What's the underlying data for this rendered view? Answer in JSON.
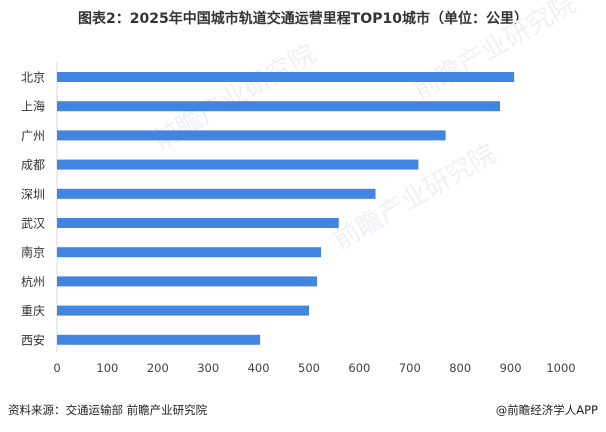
{
  "title": "图表2：2025年中国城市轨道交通运营里程TOP10城市（单位：公里）",
  "source": "资料来源：交通运输部  前瞻产业研究院",
  "brand": "@前瞻经济学人APP",
  "watermark": "前瞻产业研究院",
  "colors": {
    "bar": "#4285e0"
  },
  "chart_data": {
    "type": "bar",
    "orientation": "horizontal",
    "title": "图表2：2025年中国城市轨道交通运营里程TOP10城市（单位：公里）",
    "categories": [
      "北京",
      "上海",
      "广州",
      "成都",
      "深圳",
      "武汉",
      "南京",
      "杭州",
      "重庆",
      "西安"
    ],
    "values": [
      907,
      879,
      771,
      717,
      632,
      559,
      524,
      516,
      500,
      403
    ],
    "xlim": [
      0,
      1000
    ],
    "xticks": [
      0,
      100,
      200,
      300,
      400,
      500,
      600,
      700,
      800,
      900,
      1000
    ],
    "xlabel": "",
    "ylabel": "",
    "grid": false
  }
}
